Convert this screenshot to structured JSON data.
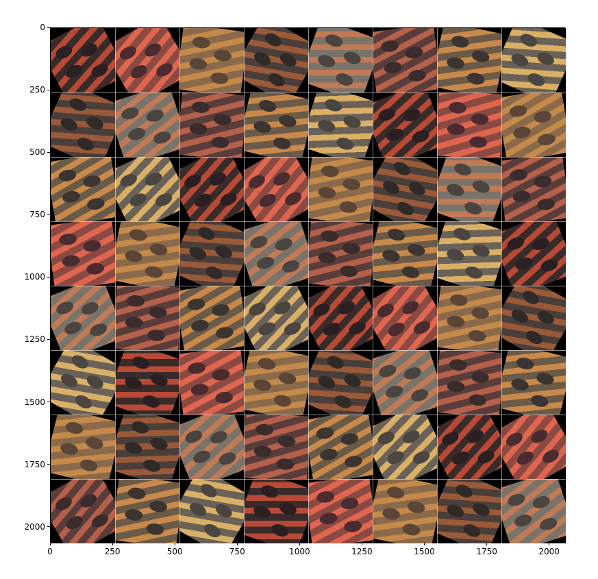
{
  "axes": {
    "x_ticks": [
      "0",
      "250",
      "500",
      "750",
      "1000",
      "1250",
      "1500",
      "1750",
      "2000"
    ],
    "y_ticks": [
      "0",
      "250",
      "500",
      "750",
      "1000",
      "1250",
      "1500",
      "1750",
      "2000"
    ],
    "x_tick_values": [
      0,
      250,
      500,
      750,
      1000,
      1250,
      1500,
      1750,
      2000
    ],
    "y_tick_values": [
      0,
      250,
      500,
      750,
      1000,
      1250,
      1500,
      1750,
      2000
    ],
    "extent": [
      0,
      2064
    ]
  },
  "grid": {
    "rows": 8,
    "cols": 8
  },
  "palette": {
    "dark": "#0e0e0e",
    "stripe_variants": [
      [
        "#3a2b2b",
        "#b84a35",
        "#2a1f22"
      ],
      [
        "#8a4a42",
        "#e0654f",
        "#4a2b2f"
      ],
      [
        "#8a6a4a",
        "#c58a4a",
        "#5a4536"
      ],
      [
        "#4a3e3a",
        "#9a5a38",
        "#2f2a28"
      ],
      [
        "#7a736a",
        "#c07a55",
        "#4a4440"
      ],
      [
        "#5a3d3a",
        "#b5604a",
        "#3a2c2c"
      ],
      [
        "#6a5a48",
        "#c9894a",
        "#3c3430"
      ],
      [
        "#6a6258",
        "#d9b066",
        "#4a4540"
      ]
    ]
  }
}
